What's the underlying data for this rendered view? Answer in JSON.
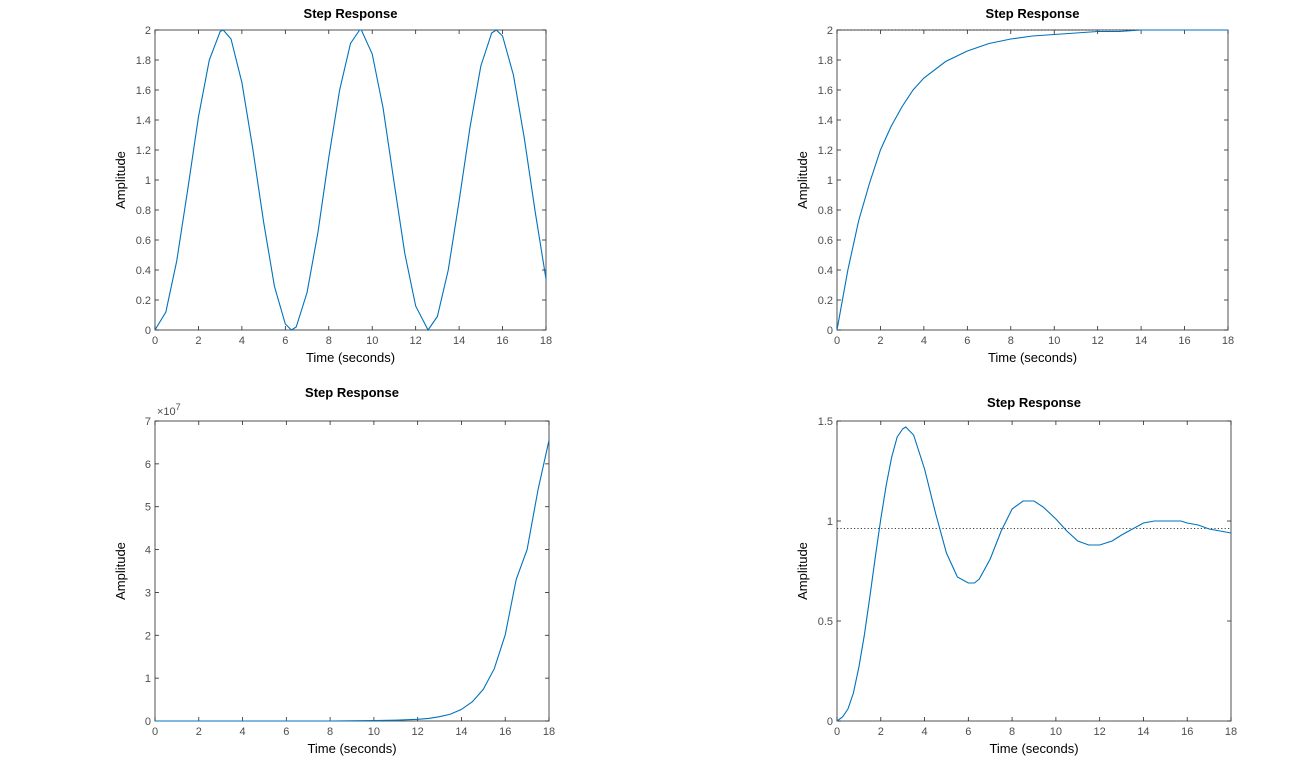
{
  "colors": {
    "series": "#0072bd",
    "axis": "#262626",
    "tick_text": "#4d4d4d",
    "reference_line": "#262626"
  },
  "chart_data": [
    {
      "type": "line",
      "position": "top-left",
      "title": "Step Response",
      "xlabel": "Time (seconds)",
      "ylabel": "Amplitude",
      "xlim": [
        0,
        18
      ],
      "ylim": [
        0,
        2
      ],
      "xticks": [
        "0",
        "2",
        "4",
        "6",
        "8",
        "10",
        "12",
        "14",
        "16",
        "18"
      ],
      "yticks": [
        "0",
        "0.2",
        "0.4",
        "0.6",
        "0.8",
        "1",
        "1.2",
        "1.4",
        "1.6",
        "1.8",
        "2"
      ],
      "grid": false,
      "series": [
        {
          "x": [
            0,
            0.5,
            1,
            1.5,
            2,
            2.5,
            3,
            3.14,
            3.5,
            4,
            4.5,
            5,
            5.5,
            6,
            6.28,
            6.5,
            7,
            7.5,
            8,
            8.5,
            9,
            9.42,
            9.5,
            10,
            10.5,
            11,
            11.5,
            12,
            12.57,
            13,
            13.5,
            14,
            14.5,
            15,
            15.5,
            15.71,
            16,
            16.5,
            17,
            17.5,
            18
          ],
          "y": [
            0,
            0.12,
            0.46,
            0.93,
            1.42,
            1.8,
            1.99,
            2.0,
            1.94,
            1.65,
            1.21,
            0.72,
            0.29,
            0.04,
            0.0,
            0.02,
            0.25,
            0.65,
            1.15,
            1.6,
            1.91,
            2.0,
            2.0,
            1.84,
            1.48,
            0.99,
            0.51,
            0.16,
            0.0,
            0.09,
            0.4,
            0.86,
            1.35,
            1.76,
            1.98,
            2.0,
            1.96,
            1.7,
            1.28,
            0.79,
            0.34
          ]
        }
      ]
    },
    {
      "type": "line",
      "position": "top-right",
      "title": "Step Response",
      "xlabel": "Time (seconds)",
      "ylabel": "Amplitude",
      "xlim": [
        0,
        18
      ],
      "ylim": [
        0,
        2
      ],
      "xticks": [
        "0",
        "2",
        "4",
        "6",
        "8",
        "10",
        "12",
        "14",
        "16",
        "18"
      ],
      "yticks": [
        "0",
        "0.2",
        "0.4",
        "0.6",
        "0.8",
        "1",
        "1.2",
        "1.4",
        "1.6",
        "1.8",
        "2"
      ],
      "grid": false,
      "reference_line": 2,
      "series": [
        {
          "x": [
            0,
            0.5,
            1,
            1.5,
            2,
            2.5,
            3,
            3.5,
            4,
            5,
            6,
            7,
            8,
            9,
            10,
            11,
            12,
            13,
            14,
            15,
            16,
            17,
            18
          ],
          "y": [
            0,
            0.4,
            0.73,
            0.98,
            1.2,
            1.36,
            1.49,
            1.6,
            1.68,
            1.79,
            1.86,
            1.91,
            1.94,
            1.96,
            1.97,
            1.98,
            1.99,
            1.99,
            2.0,
            2.0,
            2.0,
            2.0,
            2.0
          ]
        }
      ]
    },
    {
      "type": "line",
      "position": "bottom-left",
      "title": "Step Response",
      "xlabel": "Time (seconds)",
      "ylabel": "Amplitude",
      "xlim": [
        0,
        18
      ],
      "ylim": [
        0,
        7
      ],
      "exponent_label": "×10",
      "exponent_power": "7",
      "xticks": [
        "0",
        "2",
        "4",
        "6",
        "8",
        "10",
        "12",
        "14",
        "16",
        "18"
      ],
      "yticks": [
        "0",
        "1",
        "2",
        "3",
        "4",
        "5",
        "6",
        "7"
      ],
      "grid": false,
      "series": [
        {
          "x": [
            0,
            2,
            4,
            6,
            8,
            10,
            11,
            12,
            12.5,
            13,
            13.5,
            14,
            14.5,
            15,
            15.5,
            16,
            16.5,
            17,
            17.5,
            18
          ],
          "y": [
            0,
            0,
            0,
            0,
            0,
            0.01,
            0.02,
            0.04,
            0.06,
            0.1,
            0.16,
            0.27,
            0.45,
            0.74,
            1.22,
            2.01,
            3.3,
            4.0,
            5.4,
            6.55
          ]
        }
      ]
    },
    {
      "type": "line",
      "position": "bottom-right",
      "title": "Step Response",
      "xlabel": "Time (seconds)",
      "ylabel": "Amplitude",
      "xlim": [
        0,
        18
      ],
      "ylim": [
        0,
        1.5
      ],
      "xticks": [
        "0",
        "2",
        "4",
        "6",
        "8",
        "10",
        "12",
        "14",
        "16",
        "18"
      ],
      "yticks": [
        "0",
        "0.5",
        "1",
        "1.5"
      ],
      "ytick_values": [
        0,
        0.5,
        1,
        1.5
      ],
      "grid": false,
      "reference_line": 0.962,
      "series": [
        {
          "x": [
            0,
            0.25,
            0.5,
            0.75,
            1,
            1.25,
            1.5,
            1.75,
            2,
            2.25,
            2.5,
            2.75,
            3,
            3.14,
            3.5,
            4,
            4.5,
            5,
            5.5,
            6,
            6.28,
            6.5,
            7,
            7.5,
            8,
            8.5,
            9,
            9.42,
            10,
            10.5,
            11,
            11.5,
            12,
            12.57,
            13,
            13.5,
            14,
            14.5,
            15,
            15.5,
            15.71,
            16,
            16.5,
            17,
            17.5,
            18
          ],
          "y": [
            0,
            0.02,
            0.06,
            0.14,
            0.27,
            0.43,
            0.62,
            0.82,
            1.01,
            1.18,
            1.32,
            1.42,
            1.46,
            1.47,
            1.43,
            1.26,
            1.04,
            0.84,
            0.72,
            0.69,
            0.69,
            0.71,
            0.81,
            0.95,
            1.06,
            1.1,
            1.1,
            1.07,
            1.01,
            0.95,
            0.9,
            0.88,
            0.88,
            0.9,
            0.93,
            0.96,
            0.99,
            1.0,
            1.0,
            1.0,
            1.0,
            0.99,
            0.98,
            0.96,
            0.95,
            0.94
          ]
        }
      ]
    }
  ]
}
